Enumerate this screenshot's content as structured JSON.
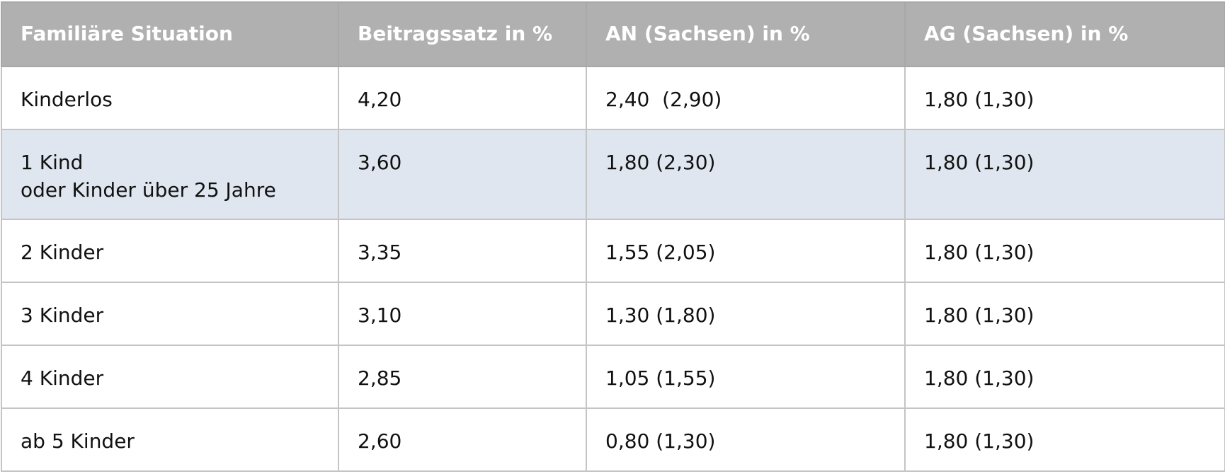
{
  "table": {
    "header": [
      "Familiäre Situation",
      "Beitragssatz in %",
      "AN (Sachsen) in %",
      "AG (Sachsen) in %"
    ],
    "rows": [
      [
        [
          "Kinderlos"
        ],
        [
          "4,20"
        ],
        [
          "2,40  (2,90)"
        ],
        [
          "1,80 (1,30)"
        ]
      ],
      [
        [
          "1 Kind",
          "oder Kinder über 25 Jahre"
        ],
        [
          "3,60"
        ],
        [
          "1,80 (2,30)"
        ],
        [
          "1,80 (1,30)"
        ]
      ],
      [
        [
          "2 Kinder"
        ],
        [
          "3,35"
        ],
        [
          "1,55 (2,05)"
        ],
        [
          "1,80 (1,30)"
        ]
      ],
      [
        [
          "3 Kinder"
        ],
        [
          "3,10"
        ],
        [
          "1,30 (1,80)"
        ],
        [
          "1,80 (1,30)"
        ]
      ],
      [
        [
          "4 Kinder"
        ],
        [
          "2,85"
        ],
        [
          "1,05 (1,55)"
        ],
        [
          "1,80 (1,30)"
        ]
      ],
      [
        [
          "ab 5 Kinder"
        ],
        [
          "2,60"
        ],
        [
          "0,80 (1,30)"
        ],
        [
          "1,80 (1,30)"
        ]
      ]
    ]
  }
}
